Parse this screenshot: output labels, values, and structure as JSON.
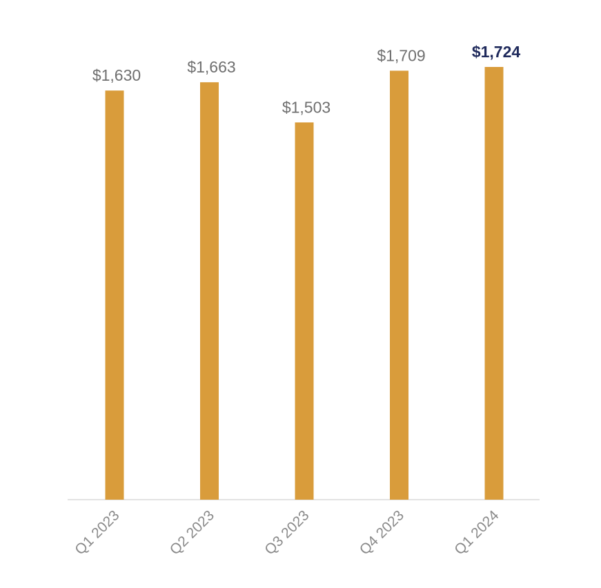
{
  "chart_data": {
    "type": "bar",
    "title": "",
    "xlabel": "",
    "ylabel": "",
    "categories": [
      "Q1 2023",
      "Q2 2023",
      "Q3 2023",
      "Q4 2023",
      "Q1 2024"
    ],
    "values": [
      1630,
      1663,
      1503,
      1709,
      1724
    ],
    "data_labels": [
      "$1,630",
      "$1,663",
      "$1,503",
      "$1,709",
      "$1,724"
    ],
    "highlight_index": 4,
    "ylim": [
      0,
      1724
    ],
    "grid": false,
    "legend": "none",
    "colors": {
      "bar": "#D99C3B",
      "label": "#6F6F6F",
      "highlight_label": "#1F2A5C",
      "tick_label": "#8A8A8A",
      "baseline": "#D9D9D9"
    }
  }
}
